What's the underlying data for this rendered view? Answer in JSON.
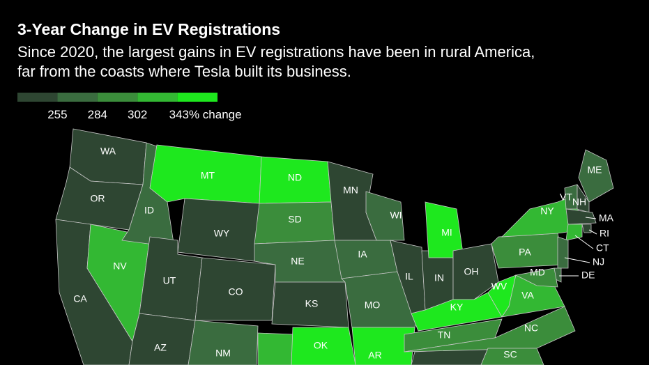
{
  "header": {
    "title": "3-Year Change in EV Registrations",
    "subtitle_lines": [
      "Since 2020, the largest gains in EV registrations have been in rural America,",
      "far from the coasts where Tesla built its business."
    ]
  },
  "legend": {
    "colors": [
      "#2e4632",
      "#3a6c3f",
      "#3b8d3b",
      "#33b833",
      "#1ee81e"
    ],
    "ticks": [
      255,
      284,
      302,
      {
        "value": 343,
        "label": "343% change"
      }
    ]
  },
  "states": [
    {
      "label": "WA",
      "bin": 0
    },
    {
      "label": "OR",
      "bin": 0
    },
    {
      "label": "CA",
      "bin": 0
    },
    {
      "label": "NV",
      "bin": 3
    },
    {
      "label": "ID",
      "bin": 1
    },
    {
      "label": "MT",
      "bin": 4
    },
    {
      "label": "WY",
      "bin": 0
    },
    {
      "label": "UT",
      "bin": 0
    },
    {
      "label": "AZ",
      "bin": 0
    },
    {
      "label": "CO",
      "bin": 0
    },
    {
      "label": "NM",
      "bin": 1
    },
    {
      "label": "ND",
      "bin": 4
    },
    {
      "label": "SD",
      "bin": 2
    },
    {
      "label": "NE",
      "bin": 1
    },
    {
      "label": "KS",
      "bin": 0
    },
    {
      "label": "OK",
      "bin": 4
    },
    {
      "label": "MN",
      "bin": 0
    },
    {
      "label": "IA",
      "bin": 1
    },
    {
      "label": "MO",
      "bin": 1
    },
    {
      "label": "AR",
      "bin": 4
    },
    {
      "label": "WI",
      "bin": 1
    },
    {
      "label": "IL",
      "bin": 0
    },
    {
      "label": "IN",
      "bin": 0
    },
    {
      "label": "MI",
      "bin": 4
    },
    {
      "label": "OH",
      "bin": 0
    },
    {
      "label": "KY",
      "bin": 4
    },
    {
      "label": "TN",
      "bin": 2
    },
    {
      "label": "WV",
      "bin": 4
    },
    {
      "label": "VA",
      "bin": 3
    },
    {
      "label": "NC",
      "bin": 2
    },
    {
      "label": "SC",
      "bin": 2
    },
    {
      "label": "PA",
      "bin": 2
    },
    {
      "label": "NY",
      "bin": 3
    },
    {
      "label": "ME",
      "bin": 1
    },
    {
      "label": "VT",
      "bin": 1
    },
    {
      "label": "NH",
      "bin": 0
    },
    {
      "label": "MA",
      "bin": 0
    },
    {
      "label": "RI",
      "bin": 0
    },
    {
      "label": "CT",
      "bin": 3
    },
    {
      "label": "NJ",
      "bin": 1
    },
    {
      "label": "DE",
      "bin": 1
    },
    {
      "label": "MD",
      "bin": 2
    }
  ]
}
